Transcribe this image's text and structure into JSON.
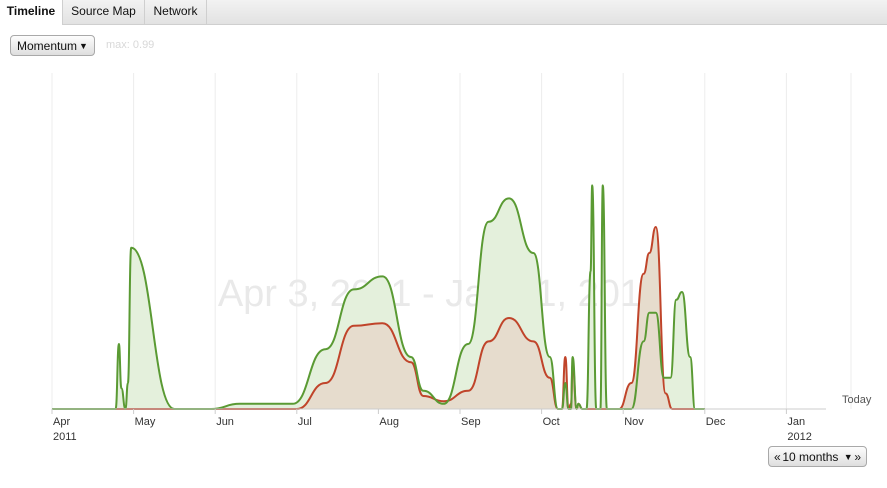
{
  "tabs": [
    {
      "label": "Timeline",
      "active": true
    },
    {
      "label": "Source Map",
      "active": false
    },
    {
      "label": "Network",
      "active": false
    }
  ],
  "controls": {
    "metric_select": "Momentum",
    "max_label": "max: 0.99",
    "range_prev": "«",
    "range_label": "10 months",
    "range_next": "»"
  },
  "chart_data": {
    "type": "area",
    "title": "Apr 3, 2011 - Jan 11, 2012",
    "today_label": "Today",
    "months": [
      {
        "label": "Apr",
        "year": "2011"
      },
      {
        "label": "May",
        "year": ""
      },
      {
        "label": "Jun",
        "year": ""
      },
      {
        "label": "Jul",
        "year": ""
      },
      {
        "label": "Aug",
        "year": ""
      },
      {
        "label": "Sep",
        "year": ""
      },
      {
        "label": "Oct",
        "year": ""
      },
      {
        "label": "Nov",
        "year": ""
      },
      {
        "label": "Dec",
        "year": ""
      },
      {
        "label": "Jan",
        "year": "2012"
      }
    ],
    "ylim": [
      0,
      1
    ],
    "colors": {
      "green": "#5a9a33",
      "red": "#c0442a",
      "green_fill": "#e4f0dc",
      "red_fill": "#e6dccd",
      "red_only_fill": "#f6dcdc",
      "grid": "#ececec",
      "axis": "#cccccc"
    },
    "series": [
      {
        "key": "green",
        "x": [
          1.0,
          1.78,
          1.82,
          1.85,
          1.9,
          1.93,
          1.97,
          2.5,
          2.95,
          3.3,
          3.6,
          3.95,
          4.35,
          4.7,
          5.05,
          5.4,
          5.55,
          5.8,
          6.1,
          6.35,
          6.6,
          6.9,
          7.1,
          7.2,
          7.25,
          7.29,
          7.33,
          7.36,
          7.38,
          7.43,
          7.45,
          7.5,
          7.55,
          7.6,
          7.62,
          7.67,
          7.72,
          7.75,
          7.8,
          7.87,
          8.1,
          8.25,
          8.32,
          8.4,
          8.5,
          8.58,
          8.65,
          8.72,
          8.82,
          8.88,
          8.98,
          9.0
        ],
        "y": [
          0.0,
          0.0,
          0.25,
          0.08,
          0.0,
          0.1,
          0.62,
          0.0,
          0.0,
          0.02,
          0.02,
          0.02,
          0.23,
          0.46,
          0.51,
          0.2,
          0.07,
          0.02,
          0.25,
          0.72,
          0.81,
          0.6,
          0.2,
          0.0,
          0.0,
          0.1,
          0.0,
          0.0,
          0.2,
          0.0,
          0.02,
          0.0,
          0.0,
          0.53,
          0.86,
          0.0,
          0.0,
          0.86,
          0.0,
          0.0,
          0.0,
          0.26,
          0.37,
          0.37,
          0.12,
          0.12,
          0.42,
          0.45,
          0.2,
          0.0,
          0.0,
          0.0
        ]
      },
      {
        "key": "red",
        "x": [
          1.0,
          4.0,
          4.35,
          4.7,
          5.05,
          5.4,
          5.55,
          5.8,
          6.1,
          6.35,
          6.6,
          6.9,
          7.1,
          7.2,
          7.25,
          7.29,
          7.33,
          7.36,
          7.38,
          7.43,
          7.45,
          7.5,
          7.95,
          8.1,
          8.25,
          8.32,
          8.4,
          8.52,
          8.6,
          8.65,
          9.0
        ],
        "y": [
          0.0,
          0.0,
          0.1,
          0.32,
          0.33,
          0.18,
          0.05,
          0.03,
          0.07,
          0.26,
          0.35,
          0.26,
          0.12,
          0.0,
          0.0,
          0.2,
          0.0,
          0.02,
          0.17,
          0.0,
          0.02,
          0.0,
          0.0,
          0.1,
          0.52,
          0.6,
          0.7,
          0.06,
          0.0,
          0.0,
          0.0
        ]
      }
    ]
  }
}
